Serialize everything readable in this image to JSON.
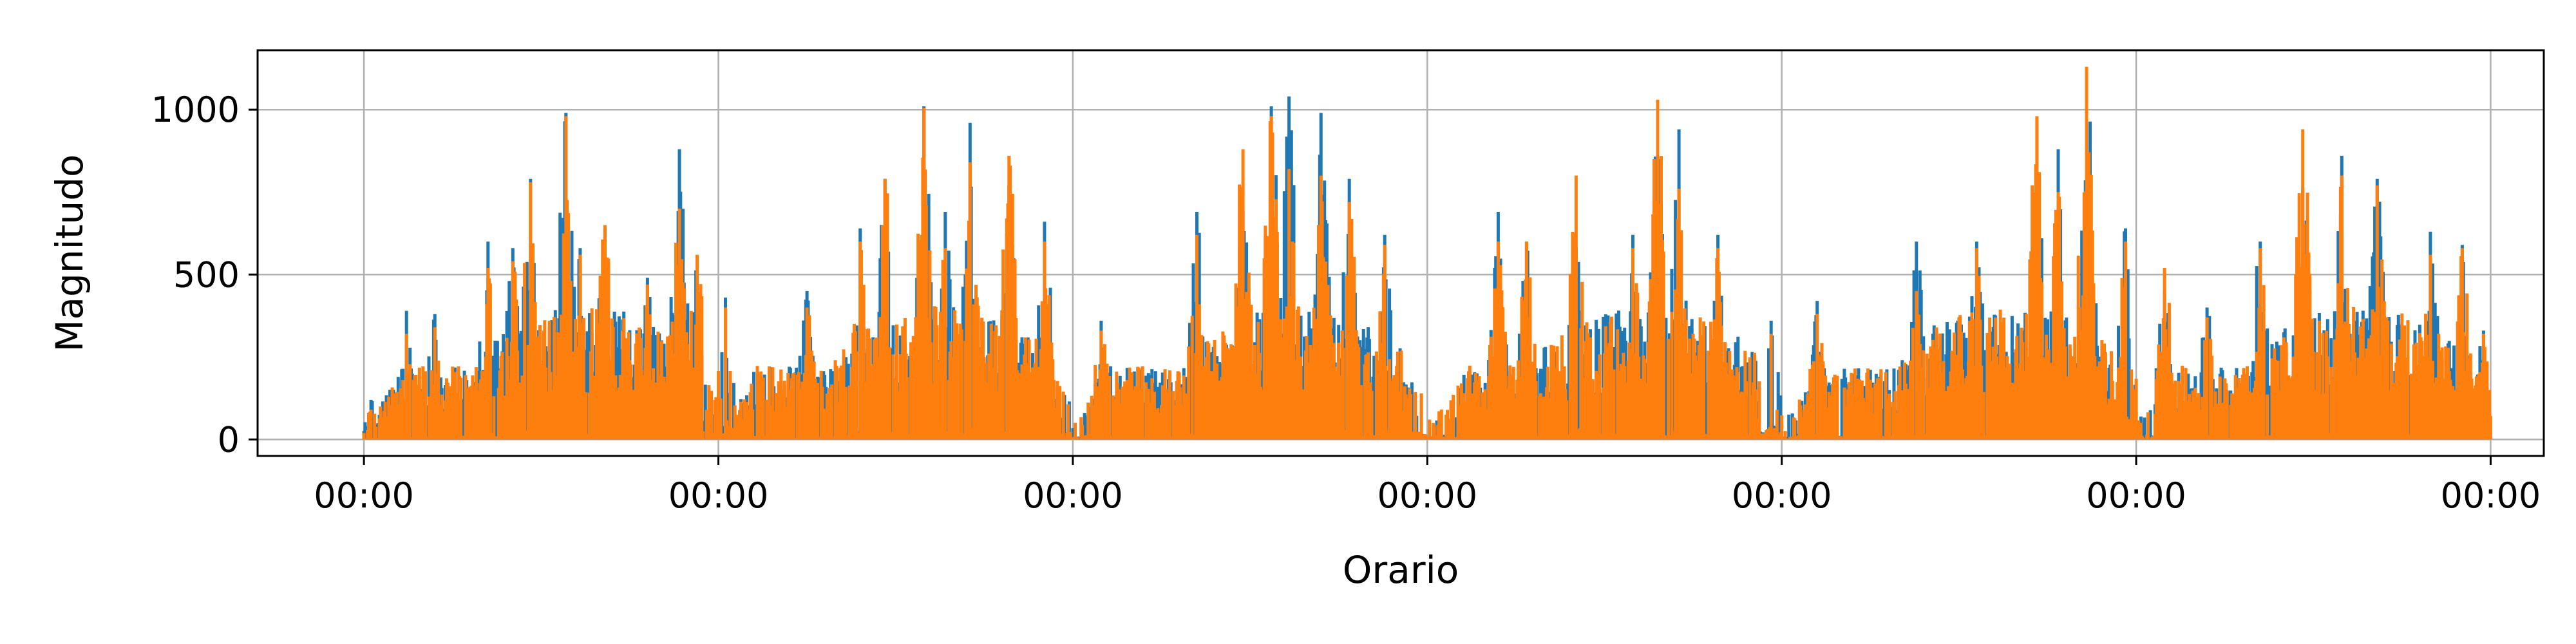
{
  "chart_data": {
    "type": "line",
    "xlabel": "Orario",
    "ylabel": "Magnitudo",
    "x_unit": "days",
    "xlim": [
      -0.3,
      6.15
    ],
    "ylim": [
      -50,
      1180
    ],
    "x_ticks": [
      0,
      1,
      2,
      3,
      4,
      5,
      6
    ],
    "x_tick_labels": [
      "00:00",
      "00:00",
      "00:00",
      "00:00",
      "00:00",
      "00:00",
      "00:00"
    ],
    "y_ticks": [
      0,
      500,
      1000
    ],
    "y_tick_labels": [
      "0",
      "500",
      "1000"
    ],
    "grid": true,
    "legend": "none",
    "series": [
      {
        "color": "#1f77b4",
        "peaks": [
          [
            0.02,
            120
          ],
          [
            0.12,
            390
          ],
          [
            0.2,
            380
          ],
          [
            0.35,
            600
          ],
          [
            0.42,
            580
          ],
          [
            0.47,
            790
          ],
          [
            0.57,
            990
          ],
          [
            0.61,
            580
          ],
          [
            0.68,
            640
          ],
          [
            0.8,
            490
          ],
          [
            0.89,
            880
          ],
          [
            0.94,
            550
          ],
          [
            1.02,
            430
          ],
          [
            1.25,
            450
          ],
          [
            1.4,
            640
          ],
          [
            1.47,
            790
          ],
          [
            1.58,
            1010
          ],
          [
            1.64,
            690
          ],
          [
            1.71,
            960
          ],
          [
            1.82,
            770
          ],
          [
            1.92,
            660
          ],
          [
            2.08,
            360
          ],
          [
            2.35,
            690
          ],
          [
            2.48,
            690
          ],
          [
            2.56,
            1010
          ],
          [
            2.61,
            1040
          ],
          [
            2.7,
            990
          ],
          [
            2.78,
            790
          ],
          [
            2.88,
            620
          ],
          [
            3.2,
            690
          ],
          [
            3.28,
            600
          ],
          [
            3.42,
            580
          ],
          [
            3.58,
            620
          ],
          [
            3.65,
            930
          ],
          [
            3.71,
            940
          ],
          [
            3.82,
            620
          ],
          [
            3.97,
            360
          ],
          [
            4.1,
            420
          ],
          [
            4.38,
            600
          ],
          [
            4.55,
            600
          ],
          [
            4.72,
            770
          ],
          [
            4.78,
            880
          ],
          [
            4.86,
            1120
          ],
          [
            4.97,
            640
          ],
          [
            5.08,
            450
          ],
          [
            5.2,
            400
          ],
          [
            5.35,
            600
          ],
          [
            5.47,
            760
          ],
          [
            5.58,
            860
          ],
          [
            5.68,
            790
          ],
          [
            5.83,
            630
          ],
          [
            5.92,
            590
          ],
          [
            5.98,
            330
          ]
        ]
      },
      {
        "color": "#ff7f0e",
        "peaks": [
          [
            0.02,
            90
          ],
          [
            0.12,
            320
          ],
          [
            0.2,
            340
          ],
          [
            0.35,
            520
          ],
          [
            0.42,
            540
          ],
          [
            0.47,
            780
          ],
          [
            0.57,
            980
          ],
          [
            0.61,
            560
          ],
          [
            0.68,
            650
          ],
          [
            0.8,
            470
          ],
          [
            0.89,
            700
          ],
          [
            0.94,
            560
          ],
          [
            1.02,
            400
          ],
          [
            1.25,
            400
          ],
          [
            1.4,
            600
          ],
          [
            1.47,
            790
          ],
          [
            1.58,
            1005
          ],
          [
            1.64,
            580
          ],
          [
            1.71,
            840
          ],
          [
            1.82,
            860
          ],
          [
            1.92,
            600
          ],
          [
            2.08,
            330
          ],
          [
            2.35,
            620
          ],
          [
            2.48,
            880
          ],
          [
            2.56,
            980
          ],
          [
            2.61,
            820
          ],
          [
            2.7,
            800
          ],
          [
            2.78,
            720
          ],
          [
            2.88,
            590
          ],
          [
            3.2,
            600
          ],
          [
            3.28,
            600
          ],
          [
            3.42,
            800
          ],
          [
            3.58,
            580
          ],
          [
            3.65,
            1030
          ],
          [
            3.71,
            760
          ],
          [
            3.82,
            580
          ],
          [
            3.97,
            320
          ],
          [
            4.1,
            380
          ],
          [
            4.38,
            450
          ],
          [
            4.55,
            580
          ],
          [
            4.72,
            980
          ],
          [
            4.78,
            750
          ],
          [
            4.86,
            1130
          ],
          [
            4.97,
            600
          ],
          [
            5.08,
            520
          ],
          [
            5.2,
            370
          ],
          [
            5.35,
            580
          ],
          [
            5.47,
            940
          ],
          [
            5.58,
            800
          ],
          [
            5.68,
            770
          ],
          [
            5.83,
            560
          ],
          [
            5.92,
            580
          ],
          [
            5.98,
            320
          ]
        ]
      }
    ]
  }
}
